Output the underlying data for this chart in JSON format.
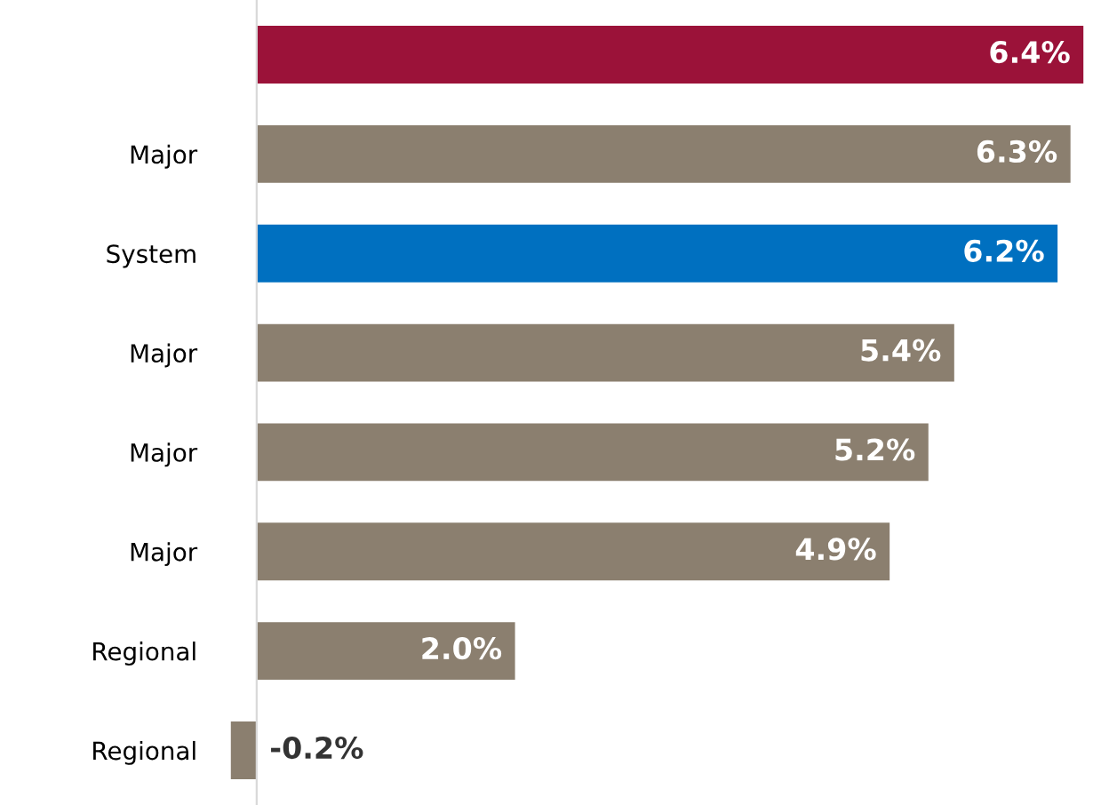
{
  "chart_data": {
    "type": "bar",
    "orientation": "horizontal",
    "categories": [
      null,
      "Major",
      "System",
      "Major",
      "Major",
      "Major",
      "Regional",
      "Regional"
    ],
    "values": [
      6.4,
      6.3,
      6.2,
      5.4,
      5.2,
      4.9,
      2.0,
      -0.2
    ],
    "colors": [
      "#9b1239",
      "#8b7f6f",
      "#0070c0",
      "#8b7f6f",
      "#8b7f6f",
      "#8b7f6f",
      "#8b7f6f",
      "#8b7f6f"
    ],
    "value_labels": [
      "6.4%",
      "6.3%",
      "6.2%",
      "5.4%",
      "5.2%",
      "4.9%",
      "2.0%",
      "-0.2%"
    ],
    "grid": false,
    "legend": false
  }
}
